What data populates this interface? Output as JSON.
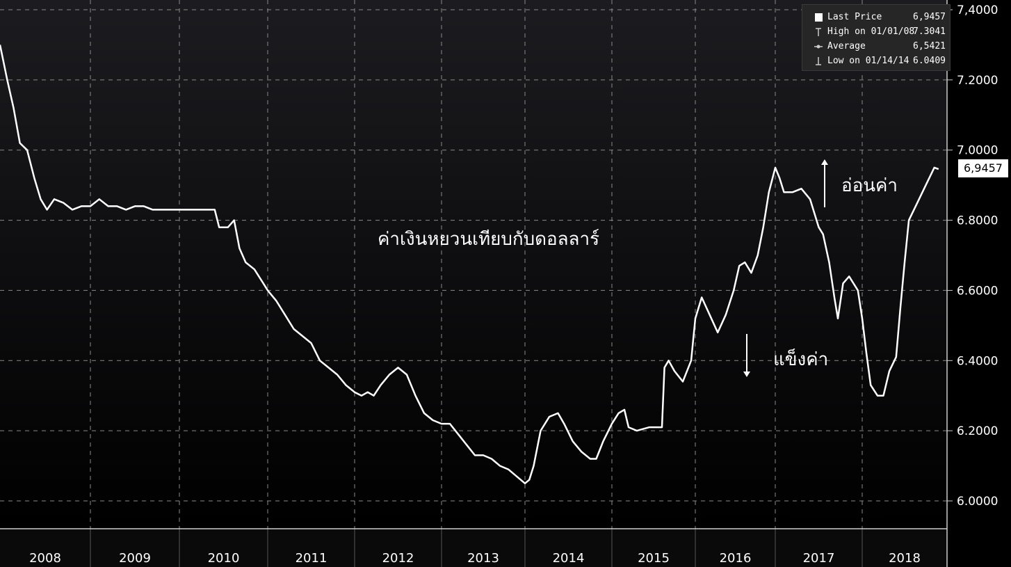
{
  "chart_data": {
    "type": "line",
    "title": "ค่าเงินหยวนเทียบกับดอลลาร์",
    "xlabel": "",
    "ylabel": "",
    "x_ticks": [
      "2008",
      "2009",
      "2010",
      "2011",
      "2012",
      "2013",
      "2014",
      "2015",
      "2016",
      "2017",
      "2018"
    ],
    "y_ticks": [
      "6.0000",
      "6.2000",
      "6.4000",
      "6.6000",
      "6.8000",
      "7.0000",
      "7.2000",
      "7,4000"
    ],
    "ylim": [
      5.95,
      7.42
    ],
    "xlim": [
      2008.0,
      2018.95
    ],
    "grid": true,
    "legend_placement": "top-right",
    "line_color": "#ffffff",
    "series": [
      {
        "values": [
          [
            2008.0,
            7.3
          ],
          [
            2008.08,
            7.2
          ],
          [
            2008.15,
            7.12
          ],
          [
            2008.22,
            7.02
          ],
          [
            2008.3,
            7.0
          ],
          [
            2008.38,
            6.92
          ],
          [
            2008.45,
            6.86
          ],
          [
            2008.52,
            6.83
          ],
          [
            2008.6,
            6.86
          ],
          [
            2008.7,
            6.85
          ],
          [
            2008.8,
            6.83
          ],
          [
            2008.9,
            6.84
          ],
          [
            2009.0,
            6.84
          ],
          [
            2009.1,
            6.86
          ],
          [
            2009.2,
            6.84
          ],
          [
            2009.3,
            6.84
          ],
          [
            2009.4,
            6.83
          ],
          [
            2009.5,
            6.84
          ],
          [
            2009.6,
            6.84
          ],
          [
            2009.7,
            6.83
          ],
          [
            2009.8,
            6.83
          ],
          [
            2009.9,
            6.83
          ],
          [
            2010.0,
            6.83
          ],
          [
            2010.1,
            6.83
          ],
          [
            2010.2,
            6.83
          ],
          [
            2010.3,
            6.83
          ],
          [
            2010.4,
            6.83
          ],
          [
            2010.45,
            6.78
          ],
          [
            2010.55,
            6.78
          ],
          [
            2010.62,
            6.8
          ],
          [
            2010.68,
            6.72
          ],
          [
            2010.75,
            6.68
          ],
          [
            2010.85,
            6.66
          ],
          [
            2010.95,
            6.62
          ],
          [
            2011.0,
            6.6
          ],
          [
            2011.1,
            6.57
          ],
          [
            2011.2,
            6.53
          ],
          [
            2011.3,
            6.49
          ],
          [
            2011.4,
            6.47
          ],
          [
            2011.5,
            6.45
          ],
          [
            2011.6,
            6.4
          ],
          [
            2011.7,
            6.38
          ],
          [
            2011.8,
            6.36
          ],
          [
            2011.9,
            6.33
          ],
          [
            2012.0,
            6.31
          ],
          [
            2012.08,
            6.3
          ],
          [
            2012.15,
            6.31
          ],
          [
            2012.22,
            6.3
          ],
          [
            2012.3,
            6.33
          ],
          [
            2012.4,
            6.36
          ],
          [
            2012.5,
            6.38
          ],
          [
            2012.6,
            6.36
          ],
          [
            2012.7,
            6.3
          ],
          [
            2012.8,
            6.25
          ],
          [
            2012.9,
            6.23
          ],
          [
            2013.0,
            6.22
          ],
          [
            2013.1,
            6.22
          ],
          [
            2013.2,
            6.19
          ],
          [
            2013.3,
            6.16
          ],
          [
            2013.4,
            6.13
          ],
          [
            2013.5,
            6.13
          ],
          [
            2013.6,
            6.12
          ],
          [
            2013.7,
            6.1
          ],
          [
            2013.8,
            6.09
          ],
          [
            2013.9,
            6.07
          ],
          [
            2014.0,
            6.05
          ],
          [
            2014.05,
            6.06
          ],
          [
            2014.1,
            6.1
          ],
          [
            2014.18,
            6.2
          ],
          [
            2014.28,
            6.24
          ],
          [
            2014.38,
            6.25
          ],
          [
            2014.45,
            6.22
          ],
          [
            2014.55,
            6.17
          ],
          [
            2014.65,
            6.14
          ],
          [
            2014.75,
            6.12
          ],
          [
            2014.82,
            6.12
          ],
          [
            2014.9,
            6.17
          ],
          [
            2015.0,
            6.22
          ],
          [
            2015.08,
            6.25
          ],
          [
            2015.15,
            6.26
          ],
          [
            2015.2,
            6.21
          ],
          [
            2015.3,
            6.2
          ],
          [
            2015.45,
            6.21
          ],
          [
            2015.6,
            6.21
          ],
          [
            2015.63,
            6.38
          ],
          [
            2015.68,
            6.4
          ],
          [
            2015.75,
            6.37
          ],
          [
            2015.85,
            6.34
          ],
          [
            2015.95,
            6.4
          ],
          [
            2016.0,
            6.52
          ],
          [
            2016.08,
            6.58
          ],
          [
            2016.18,
            6.53
          ],
          [
            2016.28,
            6.48
          ],
          [
            2016.38,
            6.53
          ],
          [
            2016.48,
            6.6
          ],
          [
            2016.55,
            6.67
          ],
          [
            2016.62,
            6.68
          ],
          [
            2016.7,
            6.65
          ],
          [
            2016.78,
            6.7
          ],
          [
            2016.85,
            6.78
          ],
          [
            2016.92,
            6.88
          ],
          [
            2017.0,
            6.95
          ],
          [
            2017.05,
            6.92
          ],
          [
            2017.1,
            6.88
          ],
          [
            2017.2,
            6.88
          ],
          [
            2017.3,
            6.89
          ],
          [
            2017.4,
            6.86
          ],
          [
            2017.5,
            6.78
          ],
          [
            2017.55,
            6.76
          ],
          [
            2017.62,
            6.68
          ],
          [
            2017.68,
            6.58
          ],
          [
            2017.72,
            6.52
          ],
          [
            2017.78,
            6.62
          ],
          [
            2017.85,
            6.64
          ],
          [
            2017.95,
            6.6
          ],
          [
            2018.0,
            6.52
          ],
          [
            2018.05,
            6.42
          ],
          [
            2018.1,
            6.33
          ],
          [
            2018.18,
            6.3
          ],
          [
            2018.25,
            6.3
          ],
          [
            2018.32,
            6.37
          ],
          [
            2018.4,
            6.41
          ],
          [
            2018.45,
            6.55
          ],
          [
            2018.5,
            6.68
          ],
          [
            2018.55,
            6.8
          ],
          [
            2018.65,
            6.85
          ],
          [
            2018.75,
            6.9
          ],
          [
            2018.85,
            6.95
          ],
          [
            2018.9,
            6.9457
          ]
        ]
      }
    ]
  },
  "legend": {
    "items": [
      {
        "label": "Last Price",
        "value": "6,9457",
        "icon": "square-icon"
      },
      {
        "label": "High on 01/01/08",
        "value": "7.3041",
        "icon": "high-marker-icon"
      },
      {
        "label": "Average",
        "value": "6,5421",
        "icon": "average-marker-icon"
      },
      {
        "label": "Low on 01/14/14",
        "value": "6.0409",
        "icon": "low-marker-icon"
      }
    ]
  },
  "last_price_tag": "6,9457",
  "annotations": {
    "title": "ค่าเงินหยวนเทียบกับดอลลาร์",
    "weaken": "อ่อนค่า",
    "strengthen": "แข็งค่า"
  }
}
